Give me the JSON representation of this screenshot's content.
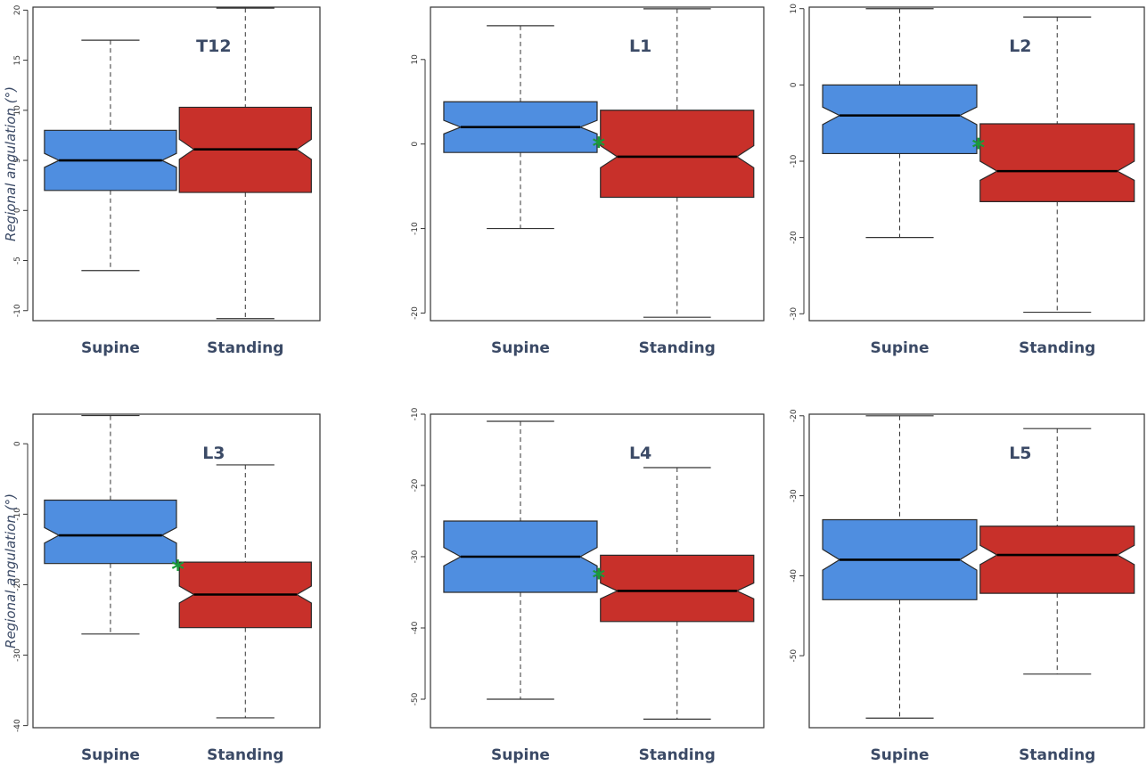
{
  "figure": {
    "colors": {
      "supine": "#4f8ee0",
      "standing": "#c8302a",
      "significance": "#1a9a3a",
      "label": "#3b4a66"
    },
    "y_label": "Regional angulation (°)"
  },
  "chart_data": [
    {
      "type": "box",
      "title": "T12",
      "ylabel": "Regional angulation (°)",
      "categories": [
        "Supine",
        "Standing"
      ],
      "ylim": [
        -11,
        20.3
      ],
      "yticks": [
        20,
        15,
        10,
        5,
        0,
        -5,
        -10
      ],
      "significance": "",
      "boxes": [
        {
          "name": "Supine",
          "min": -6,
          "q1": 2,
          "median": 5,
          "q3": 8,
          "max": 17,
          "notch": [
            4.3,
            5.7
          ]
        },
        {
          "name": "Standing",
          "min": -10.8,
          "q1": 1.8,
          "median": 6.1,
          "q3": 10.3,
          "max": 20.2,
          "notch": [
            5.1,
            7.1
          ]
        }
      ]
    },
    {
      "type": "box",
      "title": "L1",
      "ylabel": "",
      "categories": [
        "Supine",
        "Standing"
      ],
      "ylim": [
        -20.9,
        16.2
      ],
      "yticks": [
        10,
        0,
        -10,
        -20
      ],
      "significance": "*",
      "boxes": [
        {
          "name": "Supine",
          "min": -10,
          "q1": -1,
          "median": 2,
          "q3": 5,
          "max": 14,
          "notch": [
            1.2,
            2.8
          ]
        },
        {
          "name": "Standing",
          "min": -20.5,
          "q1": -6.3,
          "median": -1.5,
          "q3": 4,
          "max": 16,
          "notch": [
            -2.8,
            -0.2
          ]
        }
      ]
    },
    {
      "type": "box",
      "title": "L2",
      "ylabel": "",
      "categories": [
        "Supine",
        "Standing"
      ],
      "ylim": [
        -30.9,
        10.2
      ],
      "yticks": [
        10,
        0,
        -10,
        -20,
        -30
      ],
      "significance": "*",
      "boxes": [
        {
          "name": "Supine",
          "min": -20,
          "q1": -9,
          "median": -4,
          "q3": 0,
          "max": 10,
          "notch": [
            -5.2,
            -2.9
          ]
        },
        {
          "name": "Standing",
          "min": -29.8,
          "q1": -15.3,
          "median": -11.3,
          "q3": -5.1,
          "max": 8.9,
          "notch": [
            -12.5,
            -10
          ]
        }
      ]
    },
    {
      "type": "box",
      "title": "L3",
      "ylabel": "Regional angulation (°)",
      "categories": [
        "Supine",
        "Standing"
      ],
      "ylim": [
        -40.3,
        4.2
      ],
      "yticks": [
        0,
        -10,
        -20,
        -30,
        -40
      ],
      "significance": "*",
      "boxes": [
        {
          "name": "Supine",
          "min": -27,
          "q1": -17,
          "median": -13,
          "q3": -8,
          "max": 4,
          "notch": [
            -14.1,
            -11.9
          ]
        },
        {
          "name": "Standing",
          "min": -38.9,
          "q1": -26.1,
          "median": -21.4,
          "q3": -16.8,
          "max": -3,
          "notch": [
            -22.6,
            -20.2
          ]
        }
      ]
    },
    {
      "type": "box",
      "title": "L4",
      "ylabel": "",
      "categories": [
        "Supine",
        "Standing"
      ],
      "ylim": [
        -54,
        -10
      ],
      "yticks": [
        -10,
        -20,
        -30,
        -40,
        -50
      ],
      "significance": "*",
      "boxes": [
        {
          "name": "Supine",
          "min": -50,
          "q1": -35,
          "median": -30,
          "q3": -25,
          "max": -11,
          "notch": [
            -31.3,
            -28.7
          ]
        },
        {
          "name": "Standing",
          "min": -52.8,
          "q1": -39.1,
          "median": -34.8,
          "q3": -29.8,
          "max": -17.5,
          "notch": [
            -35.9,
            -33.7
          ]
        }
      ]
    },
    {
      "type": "box",
      "title": "L5",
      "ylabel": "",
      "categories": [
        "Supine",
        "Standing"
      ],
      "ylim": [
        -59,
        -19.8
      ],
      "yticks": [
        -20,
        -30,
        -40,
        -50
      ],
      "significance": "",
      "boxes": [
        {
          "name": "Supine",
          "min": -57.8,
          "q1": -43,
          "median": -38,
          "q3": -33,
          "max": -20,
          "notch": [
            -39.3,
            -36.7
          ]
        },
        {
          "name": "Standing",
          "min": -52.3,
          "q1": -42.2,
          "median": -37.4,
          "q3": -33.8,
          "max": -21.6,
          "notch": [
            -38.6,
            -36.2
          ]
        }
      ]
    }
  ]
}
